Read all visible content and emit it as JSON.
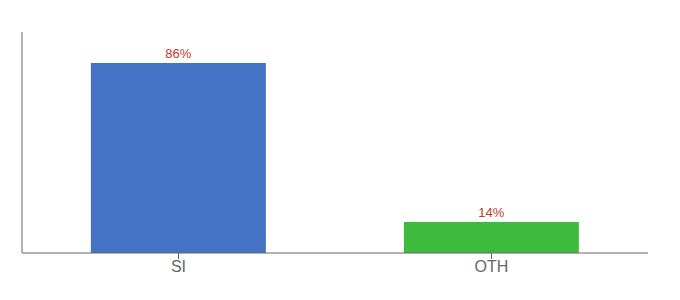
{
  "chart_data": {
    "type": "bar",
    "categories": [
      "SI",
      "OTH"
    ],
    "values": [
      86,
      14
    ],
    "value_labels": [
      "86%",
      "14%"
    ],
    "colors": [
      "#4472c4",
      "#3dbb3d"
    ],
    "ylim": [
      0,
      100
    ],
    "data_labels": true,
    "tick_labels": "x"
  }
}
